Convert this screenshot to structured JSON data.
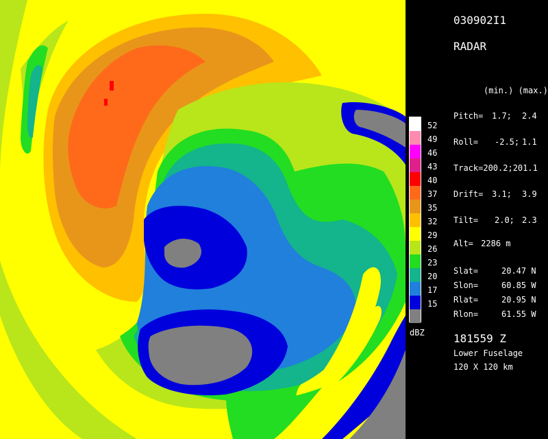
{
  "header": {
    "flight_id": "030902I1",
    "product": "RADAR",
    "minmax_label": "(min.) (max.)"
  },
  "params": [
    {
      "label": "Pitch=",
      "min": "1.7;",
      "max": "2.4"
    },
    {
      "label": "Roll=",
      "min": "-2.5;",
      "max": "1.1"
    },
    {
      "label": "Track=200.2;201.1",
      "min": "",
      "max": ""
    },
    {
      "label": "Drift=",
      "min": "3.1;",
      "max": "3.9"
    },
    {
      "label": "Tilt=",
      "min": "2.0;",
      "max": "2.3"
    }
  ],
  "alt": {
    "label": "Alt=",
    "value": "2286 m"
  },
  "position": [
    {
      "label": "Slat=",
      "value": "20.47 N"
    },
    {
      "label": "Slon=",
      "value": "60.85 W"
    },
    {
      "label": "Rlat=",
      "value": "20.95 N"
    },
    {
      "label": "Rlon=",
      "value": "61.55 W"
    }
  ],
  "footer": {
    "time": "181559 Z",
    "antenna": "Lower Fuselage",
    "size": "120 X 120 km"
  },
  "colorbar": {
    "unit": "dBZ",
    "levels": [
      {
        "value": "52",
        "color": "#ffffff"
      },
      {
        "value": "49",
        "color": "#ff8ab0"
      },
      {
        "value": "46",
        "color": "#ff00ff"
      },
      {
        "value": "43",
        "color": "#e0208a"
      },
      {
        "value": "40",
        "color": "#ff0000"
      },
      {
        "value": "37",
        "color": "#ff6a1a"
      },
      {
        "value": "35",
        "color": "#e8961a"
      },
      {
        "value": "32",
        "color": "#ffc000"
      },
      {
        "value": "29",
        "color": "#ffff00"
      },
      {
        "value": "26",
        "color": "#b8e61a"
      },
      {
        "value": "23",
        "color": "#22dd22"
      },
      {
        "value": "20",
        "color": "#14b48c"
      },
      {
        "value": "17",
        "color": "#2080dc"
      },
      {
        "value": "15",
        "color": "#0000dc"
      },
      {
        "value": "",
        "color": "#808080"
      }
    ]
  },
  "palette": {
    "gray": "#808080",
    "blue": "#0000dc",
    "ltblue": "#2080dc",
    "teal": "#14b48c",
    "green": "#22dd22",
    "yelgreen": "#b8e61a",
    "yellow": "#ffff00",
    "gold": "#ffc000",
    "orange": "#e8961a",
    "dkorange": "#ff6a1a",
    "red": "#ff0000"
  }
}
